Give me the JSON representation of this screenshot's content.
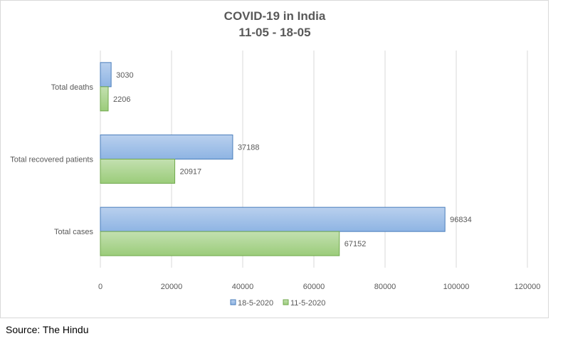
{
  "chart_data": {
    "type": "bar",
    "orientation": "horizontal",
    "title": "COVID-19 in India",
    "subtitle": "11-05 - 18-05",
    "categories": [
      "Total deaths",
      "Total recovered patients",
      "Total cases"
    ],
    "series": [
      {
        "name": "18-5-2020",
        "values": [
          3030,
          37188,
          96834
        ],
        "color": "#8eb4e3"
      },
      {
        "name": "11-5-2020",
        "values": [
          2206,
          20917,
          67152
        ],
        "color": "#9bcc7a"
      }
    ],
    "xlim": [
      0,
      120000
    ],
    "xticks": [
      "0",
      "20000",
      "40000",
      "60000",
      "80000",
      "100000",
      "120000"
    ],
    "grid": true,
    "legend_position": "bottom"
  },
  "source": "Source: The Hindu"
}
